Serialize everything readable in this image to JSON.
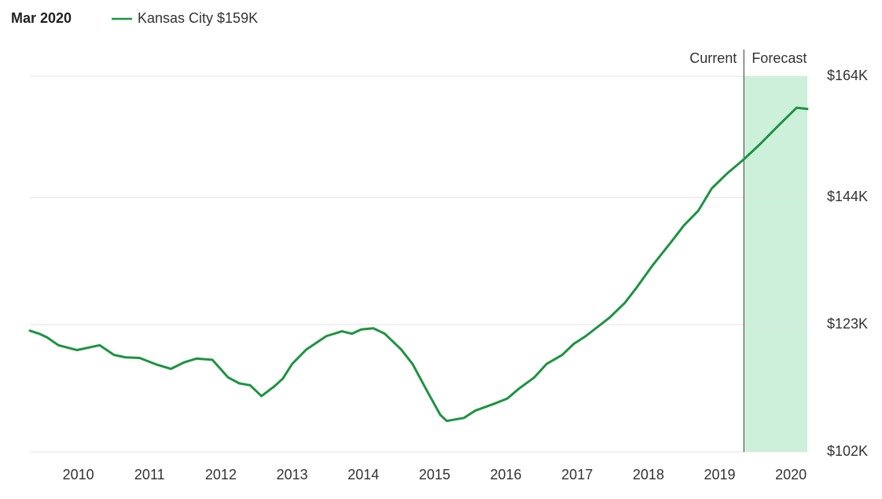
{
  "chart_data": {
    "type": "line",
    "title": "Mar 2020",
    "annotations": [
      "Current",
      "Forecast"
    ],
    "forecast_start": 2019.34,
    "forecast_color": "#cdf0da",
    "x": [
      2009.32,
      2009.45,
      2009.56,
      2009.72,
      2009.98,
      2010.3,
      2010.5,
      2010.66,
      2010.86,
      2011.1,
      2011.3,
      2011.49,
      2011.66,
      2011.88,
      2012.1,
      2012.26,
      2012.41,
      2012.57,
      2012.76,
      2012.87,
      2013.0,
      2013.2,
      2013.48,
      2013.7,
      2013.84,
      2013.97,
      2014.14,
      2014.3,
      2014.53,
      2014.69,
      2014.91,
      2015.08,
      2015.17,
      2015.41,
      2015.57,
      2015.85,
      2016.02,
      2016.18,
      2016.4,
      2016.57,
      2016.79,
      2016.95,
      2017.12,
      2017.45,
      2017.67,
      2017.84,
      2018.06,
      2018.33,
      2018.5,
      2018.7,
      2018.89,
      2019.11,
      2019.34,
      2019.55,
      2019.82,
      2020.08,
      2020.23
    ],
    "series": [
      {
        "name": "Kansas City $159K",
        "color": "#1b9440",
        "values": [
          122.0,
          121.5,
          120.9,
          119.6,
          118.8,
          119.6,
          118.0,
          117.6,
          117.5,
          116.4,
          115.7,
          116.8,
          117.4,
          117.2,
          114.3,
          113.3,
          113.0,
          111.2,
          112.9,
          114.1,
          116.5,
          118.9,
          121.1,
          121.9,
          121.5,
          122.2,
          122.4,
          121.5,
          118.9,
          116.5,
          111.7,
          108.1,
          107.1,
          107.6,
          108.8,
          110.0,
          110.8,
          112.4,
          114.3,
          116.5,
          118.0,
          119.8,
          121.1,
          124.1,
          126.6,
          129.2,
          132.8,
          136.8,
          139.4,
          141.8,
          145.5,
          148.0,
          150.3,
          152.6,
          155.8,
          158.8,
          158.6
        ]
      }
    ],
    "xlim": [
      2009.32,
      2020.23
    ],
    "xticks": [
      2010,
      2011,
      2012,
      2013,
      2014,
      2015,
      2016,
      2017,
      2018,
      2019,
      2020
    ],
    "ylim": [
      102,
      164
    ],
    "yticks": [
      {
        "value": 102,
        "label": "$102K"
      },
      {
        "value": 123,
        "label": "$123K"
      },
      {
        "value": 144,
        "label": "$144K"
      },
      {
        "value": 164,
        "label": "$164K"
      }
    ],
    "grid": true
  }
}
